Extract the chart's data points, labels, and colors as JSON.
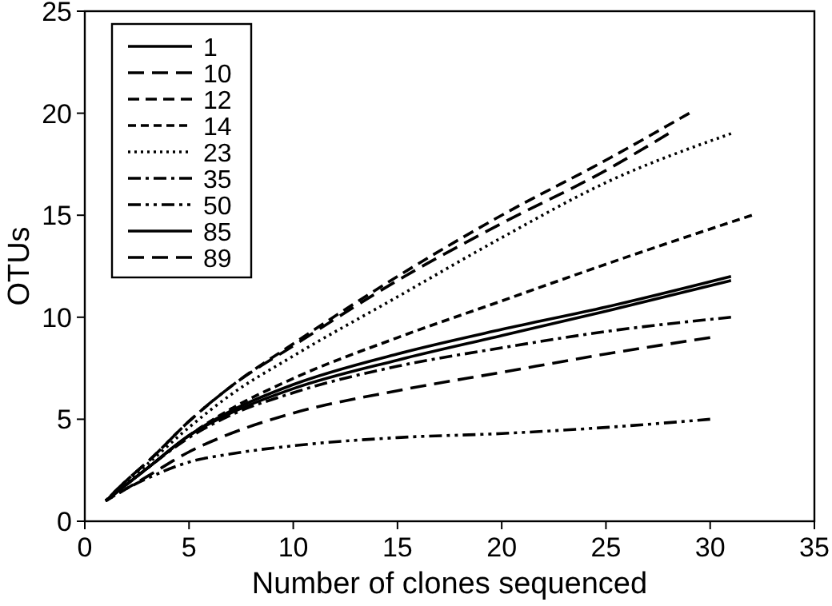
{
  "chart_data": {
    "type": "line",
    "xlabel": "Number of clones sequenced",
    "ylabel": "OTUs",
    "xlim": [
      0,
      35
    ],
    "xticks": [
      0,
      5,
      10,
      15,
      20,
      25,
      30,
      35
    ],
    "ylim": [
      0,
      25
    ],
    "yticks": [
      0,
      5,
      10,
      15,
      20,
      25
    ],
    "grid": false,
    "legend": "top left",
    "marker": "none",
    "series": [
      {
        "name": "1",
        "color": "#000000",
        "line_style": "solid",
        "x": [
          1,
          2,
          3,
          5,
          7,
          10,
          15,
          20,
          25,
          31
        ],
        "values": [
          1,
          1.8,
          2.6,
          4.2,
          5.4,
          6.7,
          8.2,
          9.4,
          10.5,
          12
        ]
      },
      {
        "name": "10",
        "color": "#000000",
        "line_style": "dashed",
        "x": [
          1,
          2,
          3,
          5,
          7,
          10,
          15,
          20,
          25,
          28
        ],
        "values": [
          1,
          2,
          2.9,
          4.9,
          6.6,
          8.6,
          11.8,
          14.6,
          17.2,
          19
        ]
      },
      {
        "name": "12",
        "color": "#000000",
        "line_style": "dashed",
        "x": [
          1,
          2,
          3,
          5,
          7,
          10,
          15,
          20,
          25,
          29
        ],
        "values": [
          1,
          2,
          2.9,
          4.9,
          6.6,
          8.7,
          12,
          15,
          17.7,
          20
        ]
      },
      {
        "name": "14",
        "color": "#000000",
        "line_style": "dashed",
        "x": [
          1,
          2,
          3,
          5,
          7,
          10,
          15,
          20,
          25,
          32
        ],
        "values": [
          1,
          1.8,
          2.6,
          4.2,
          5.5,
          7,
          9,
          10.8,
          12.6,
          15
        ]
      },
      {
        "name": "23",
        "color": "#000000",
        "line_style": "dotted",
        "x": [
          1,
          2,
          3,
          5,
          7,
          10,
          15,
          20,
          25,
          31
        ],
        "values": [
          1,
          1.9,
          2.8,
          4.6,
          6.2,
          8.1,
          11,
          13.9,
          16.6,
          19
        ]
      },
      {
        "name": "35",
        "color": "#000000",
        "line_style": "dashed",
        "x": [
          1,
          2,
          3,
          5,
          7,
          10,
          15,
          20,
          25,
          31
        ],
        "values": [
          1,
          1.8,
          2.6,
          4.1,
          5.2,
          6.3,
          7.6,
          8.5,
          9.3,
          10
        ]
      },
      {
        "name": "50",
        "color": "#000000",
        "line_style": "dashed",
        "x": [
          1,
          2,
          3,
          5,
          7,
          10,
          15,
          20,
          25,
          30
        ],
        "values": [
          1,
          1.6,
          2.1,
          2.9,
          3.3,
          3.7,
          4.1,
          4.3,
          4.6,
          5
        ]
      },
      {
        "name": "85",
        "color": "#000000",
        "line_style": "solid",
        "x": [
          1,
          2,
          3,
          5,
          7,
          10,
          15,
          20,
          25,
          31
        ],
        "values": [
          1,
          1.8,
          2.6,
          4.2,
          5.3,
          6.5,
          7.9,
          9.1,
          10.3,
          11.8
        ]
      },
      {
        "name": "89",
        "color": "#000000",
        "line_style": "dashed",
        "x": [
          1,
          2,
          3,
          5,
          7,
          10,
          15,
          20,
          25,
          30
        ],
        "values": [
          1,
          1.6,
          2.2,
          3.4,
          4.3,
          5.3,
          6.4,
          7.3,
          8.2,
          9
        ]
      }
    ]
  }
}
